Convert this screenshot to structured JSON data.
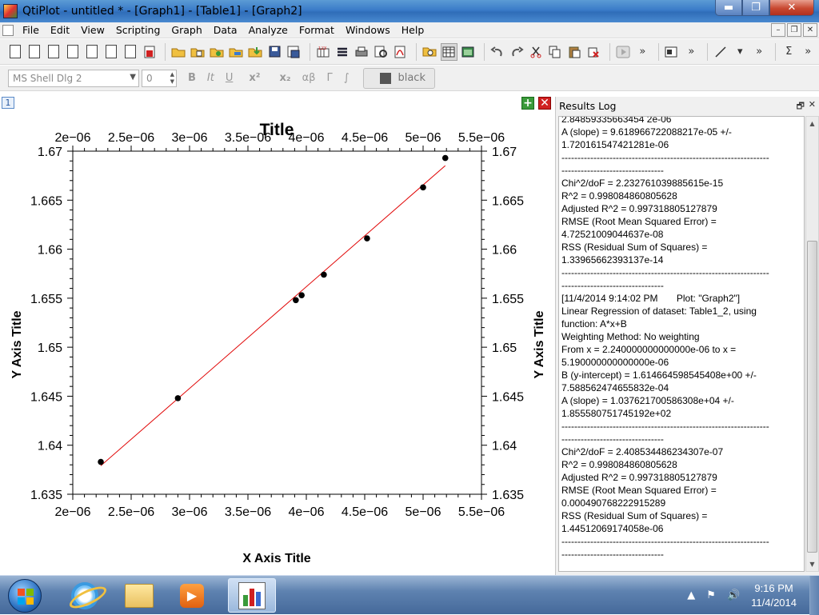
{
  "window": {
    "title": "QtiPlot - untitled * - [Graph1] - [Table1] - [Graph2]"
  },
  "window_buttons": {
    "minimize": "▬",
    "maximize": "❐",
    "close": "✕"
  },
  "menu": [
    "File",
    "Edit",
    "View",
    "Scripting",
    "Graph",
    "Data",
    "Analyze",
    "Format",
    "Windows",
    "Help"
  ],
  "mdi_buttons": {
    "minimize": "–",
    "restore": "❐",
    "close": "✕"
  },
  "format_toolbar": {
    "font": "MS Shell Dlg 2",
    "size": "0",
    "bold": "B",
    "italic": "It",
    "underline": "U",
    "superscript": "x²",
    "subscript": "x₂",
    "greek": "αβ",
    "greek_upper": "Γ",
    "integral": "∫",
    "color": "black"
  },
  "workspace": {
    "window_number": "1",
    "add": "+",
    "remove": "✕"
  },
  "chart_data": {
    "type": "scatter",
    "title": "Title",
    "xlabel": "X Axis Title",
    "ylabel": "Y Axis Title",
    "xlim": [
      2e-06,
      5.5e-06
    ],
    "ylim": [
      1.635,
      1.67
    ],
    "x_ticks": [
      "2e−06",
      "2.5e−06",
      "3e−06",
      "3.5e−06",
      "4e−06",
      "4.5e−06",
      "5e−06",
      "5.5e−06"
    ],
    "y_ticks": [
      "1.635",
      "1.64",
      "1.645",
      "1.65",
      "1.655",
      "1.66",
      "1.665",
      "1.67"
    ],
    "series": [
      {
        "x": [
          2.24e-06,
          2.9e-06,
          3.91e-06,
          3.96e-06,
          4.15e-06,
          4.52e-06,
          5e-06,
          5.19e-06
        ],
        "y": [
          1.6383,
          1.6448,
          1.6548,
          1.6553,
          1.6574,
          1.6611,
          1.6663,
          1.6693
        ],
        "color": "#000000"
      }
    ],
    "fit_line": {
      "x": [
        2.24e-06,
        5.19e-06
      ],
      "y": [
        1.63791,
        1.66852
      ],
      "color": "#e00000"
    },
    "grid": false
  },
  "results_log": {
    "title": "Results Log",
    "float_button": "🗗",
    "close_button": "✕",
    "lines": [
      "2.84859335663454 2e-06",
      "A (slope) = 9.618966722088217e-05 +/-",
      "1.720161547421281e-06",
      "-----------------------------------------------------------------",
      "--------------------------------",
      "Chi^2/doF = 2.232761039885615e-15",
      "R^2 = 0.998084860805628",
      "Adjusted R^2 = 0.997318805127879",
      "RMSE (Root Mean Squared Error) =",
      "4.72521009044637e-08",
      "RSS (Residual Sum of Squares) =",
      "1.33965662393137e-14",
      "-----------------------------------------------------------------",
      "--------------------------------",
      "[11/4/2014 9:14:02 PM       Plot: \"Graph2\"]",
      "Linear Regression of dataset: Table1_2, using",
      "function: A*x+B",
      "Weighting Method: No weighting",
      "From x = 2.240000000000000e-06 to x =",
      "5.190000000000000e-06",
      "B (y-intercept) = 1.614664598545408e+00 +/-",
      "7.588562474655832e-04",
      "A (slope) = 1.037621700586308e+04 +/-",
      "1.855580751745192e+02",
      "-----------------------------------------------------------------",
      "--------------------------------",
      "Chi^2/doF = 2.408534486234307e-07",
      "R^2 = 0.998084860805628",
      "Adjusted R^2 = 0.997318805127879",
      "RMSE (Root Mean Squared Error) =",
      "0.000490768222915289",
      "RSS (Residual Sum of Squares) =",
      "1.44512069174058e-06",
      "-----------------------------------------------------------------",
      "--------------------------------"
    ]
  },
  "taskbar": {
    "media_glyph": "▶",
    "clock_time": "9:16 PM",
    "clock_date": "11/4/2014",
    "tray_arrow": "▲",
    "tray_network": "⚑",
    "tray_volume": "🔊"
  }
}
